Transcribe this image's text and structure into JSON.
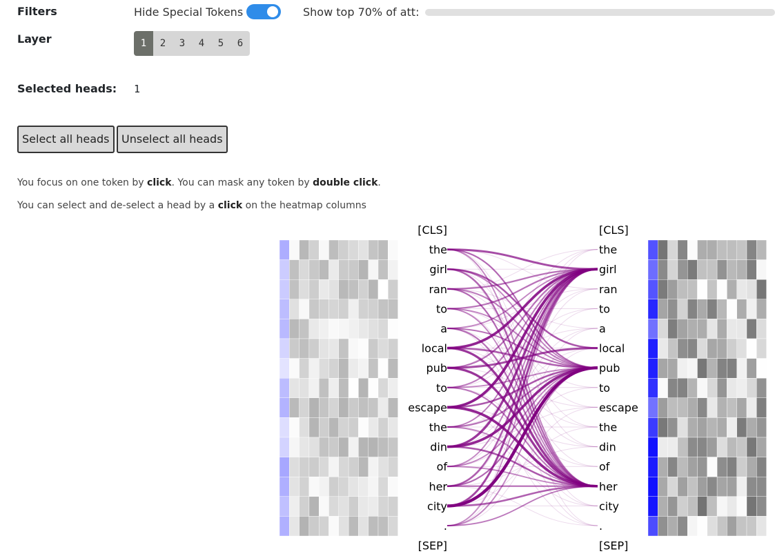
{
  "filters": {
    "label": "Filters",
    "hide_special_tokens_label": "Hide Special Tokens",
    "hide_special_tokens_on": true,
    "show_top_label": "Show top 70% of att:",
    "show_top_percent": 70
  },
  "layer": {
    "label": "Layer",
    "options": [
      "1",
      "2",
      "3",
      "4",
      "5",
      "6"
    ],
    "selected": "1"
  },
  "selected_heads": {
    "label": "Selected heads:",
    "value": "1"
  },
  "buttons": {
    "select_all": "Select all heads",
    "unselect_all": "Unselect all heads"
  },
  "help": {
    "line1": [
      "You focus on one token by ",
      "click",
      ". You can mask any token by ",
      "double click",
      "."
    ],
    "line2": [
      "You can select and de-select a head by a ",
      "click",
      " on the heatmap columns"
    ]
  },
  "tokens": [
    "[CLS]",
    "the",
    "girl",
    "ran",
    "to",
    "a",
    "local",
    "pub",
    "to",
    "escape",
    "the",
    "din",
    "of",
    "her",
    "city",
    ".",
    "[SEP]"
  ],
  "colors": {
    "accent": "#2f8ce9",
    "line": "#800080",
    "heat_blue": "#1a1aff"
  },
  "attention_links": [
    [
      1,
      2,
      0.6
    ],
    [
      1,
      7,
      0.4
    ],
    [
      1,
      13,
      0.3
    ],
    [
      2,
      6,
      0.5
    ],
    [
      2,
      13,
      0.45
    ],
    [
      2,
      7,
      0.3
    ],
    [
      3,
      2,
      0.4
    ],
    [
      3,
      13,
      0.4
    ],
    [
      3,
      7,
      0.35
    ],
    [
      4,
      2,
      0.4
    ],
    [
      4,
      13,
      0.3
    ],
    [
      4,
      7,
      0.3
    ],
    [
      5,
      13,
      0.4
    ],
    [
      5,
      7,
      0.35
    ],
    [
      5,
      2,
      0.3
    ],
    [
      6,
      2,
      0.8
    ],
    [
      6,
      13,
      0.7
    ],
    [
      6,
      7,
      0.5
    ],
    [
      7,
      6,
      0.6
    ],
    [
      7,
      13,
      0.7
    ],
    [
      7,
      2,
      0.4
    ],
    [
      8,
      2,
      0.35
    ],
    [
      8,
      13,
      0.35
    ],
    [
      8,
      7,
      0.3
    ],
    [
      9,
      2,
      0.85
    ],
    [
      9,
      13,
      0.8
    ],
    [
      9,
      7,
      0.5
    ],
    [
      10,
      7,
      0.4
    ],
    [
      10,
      2,
      0.3
    ],
    [
      10,
      13,
      0.3
    ],
    [
      11,
      7,
      0.8
    ],
    [
      11,
      2,
      0.7
    ],
    [
      11,
      13,
      0.5
    ],
    [
      12,
      13,
      0.3
    ],
    [
      12,
      7,
      0.3
    ],
    [
      12,
      2,
      0.3
    ],
    [
      13,
      2,
      0.5
    ],
    [
      13,
      7,
      0.4
    ],
    [
      13,
      13,
      0.4
    ],
    [
      14,
      7,
      1.0
    ],
    [
      14,
      2,
      0.6
    ],
    [
      14,
      13,
      0.5
    ],
    [
      15,
      13,
      0.3
    ],
    [
      15,
      7,
      0.3
    ],
    [
      15,
      2,
      0.25
    ]
  ]
}
